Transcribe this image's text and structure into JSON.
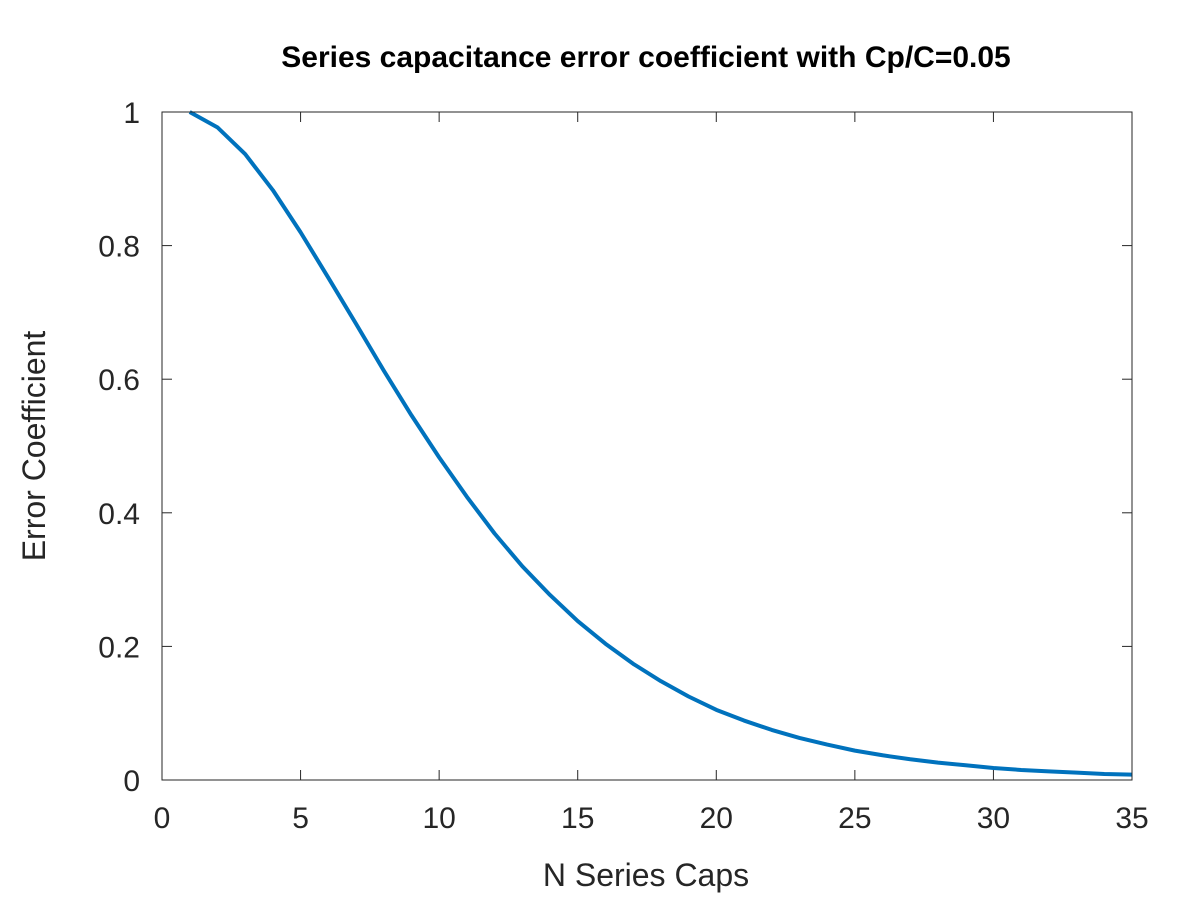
{
  "chart_data": {
    "type": "line",
    "title": "Series capacitance error coefficient with Cp/C=0.05",
    "xlabel": "N Series Caps",
    "ylabel": "Error Coefficient",
    "xlim": [
      0,
      35
    ],
    "ylim": [
      0,
      1
    ],
    "xticks": [
      0,
      5,
      10,
      15,
      20,
      25,
      30,
      35
    ],
    "yticks": [
      0,
      0.2,
      0.4,
      0.6,
      0.8,
      1
    ],
    "xtick_labels": [
      "0",
      "5",
      "10",
      "15",
      "20",
      "25",
      "30",
      "35"
    ],
    "ytick_labels": [
      "0",
      "0.2",
      "0.4",
      "0.6",
      "0.8",
      "1"
    ],
    "grid": false,
    "series": [
      {
        "color": "#0072BD",
        "x": [
          1,
          2,
          3,
          4,
          5,
          6,
          7,
          8,
          9,
          10,
          11,
          12,
          13,
          14,
          15,
          16,
          17,
          18,
          19,
          20,
          21,
          22,
          23,
          24,
          25,
          26,
          27,
          28,
          29,
          30,
          31,
          32,
          33,
          34,
          35
        ],
        "values": [
          1.0,
          0.977,
          0.937,
          0.883,
          0.82,
          0.752,
          0.683,
          0.613,
          0.546,
          0.483,
          0.424,
          0.369,
          0.32,
          0.277,
          0.238,
          0.204,
          0.174,
          0.148,
          0.125,
          0.105,
          0.089,
          0.075,
          0.063,
          0.053,
          0.044,
          0.037,
          0.031,
          0.026,
          0.022,
          0.018,
          0.015,
          0.013,
          0.011,
          0.009,
          0.008
        ]
      }
    ]
  }
}
